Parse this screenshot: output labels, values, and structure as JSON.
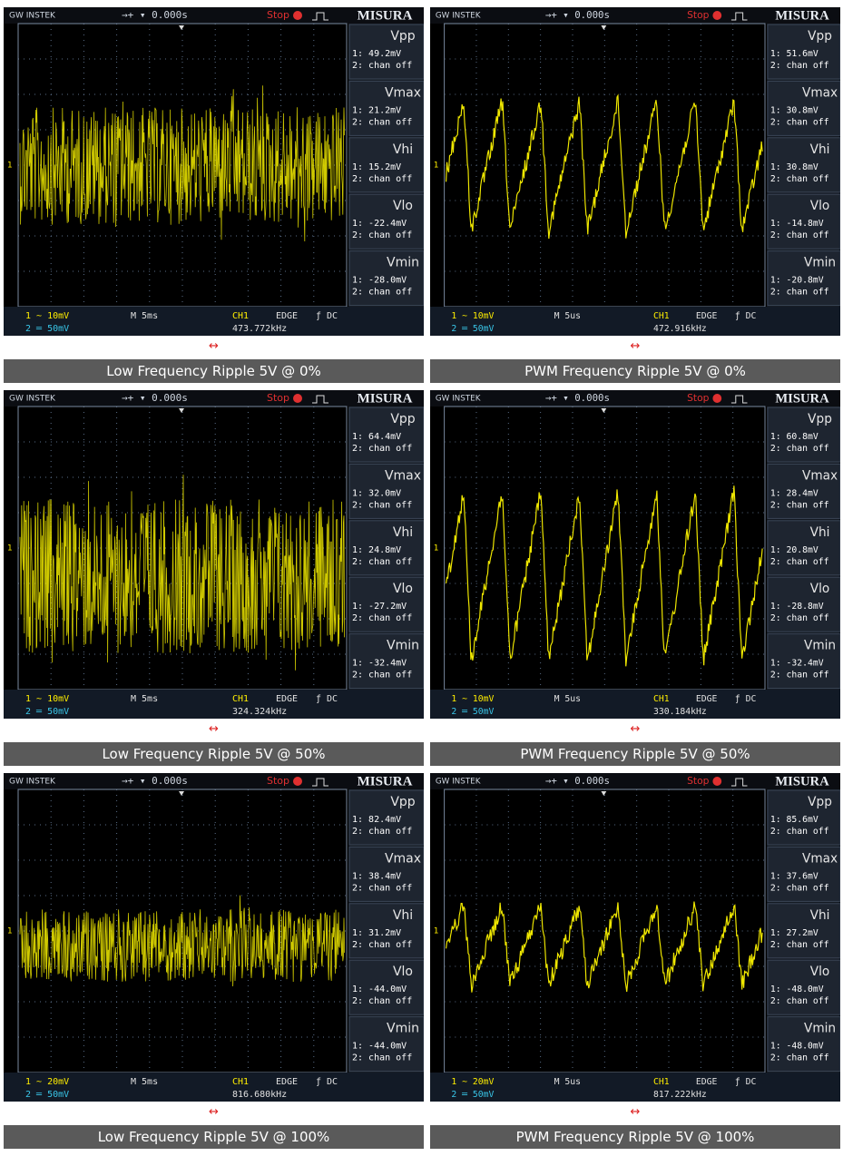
{
  "panels": [
    {
      "brand": "GW INSTEK",
      "trigger": "→+ ▾ 0.000s",
      "status": "Stop",
      "title": "MISURA",
      "channel_marker": "1",
      "measurements": [
        {
          "label": "Vpp",
          "ch1": "1: 49.2mV",
          "ch2": "2: chan off"
        },
        {
          "label": "Vmax",
          "ch1": "1: 21.2mV",
          "ch2": "2: chan off"
        },
        {
          "label": "Vhi",
          "ch1": "1: 15.2mV",
          "ch2": "2: chan off"
        },
        {
          "label": "Vlo",
          "ch1": "1: -22.4mV",
          "ch2": "2: chan off"
        },
        {
          "label": "Vmin",
          "ch1": "1: -28.0mV",
          "ch2": "2: chan off"
        }
      ],
      "ch1_scale": "1 ~ 10mV",
      "ch2_scale": "2 ═ 50mV",
      "timebase": "M 5ms",
      "source": "CH1",
      "trigger_type": "EDGE",
      "coupling": "ƒ DC",
      "frequency": "473.772kHz",
      "link": "↔",
      "caption": "Low Frequency Ripple 5V @ 0%"
    },
    {
      "brand": "GW INSTEK",
      "trigger": "→+ ▾ 0.000s",
      "status": "Stop",
      "title": "MISURA",
      "channel_marker": "1",
      "measurements": [
        {
          "label": "Vpp",
          "ch1": "1: 51.6mV",
          "ch2": "2: chan off"
        },
        {
          "label": "Vmax",
          "ch1": "1: 30.8mV",
          "ch2": "2: chan off"
        },
        {
          "label": "Vhi",
          "ch1": "1: 30.8mV",
          "ch2": "2: chan off"
        },
        {
          "label": "Vlo",
          "ch1": "1: -14.8mV",
          "ch2": "2: chan off"
        },
        {
          "label": "Vmin",
          "ch1": "1: -20.8mV",
          "ch2": "2: chan off"
        }
      ],
      "ch1_scale": "1 ~ 10mV",
      "ch2_scale": "2 ═ 50mV",
      "timebase": "M 5us",
      "source": "CH1",
      "trigger_type": "EDGE",
      "coupling": "ƒ DC",
      "frequency": "472.916kHz",
      "link": "↔",
      "caption": "PWM Frequency Ripple 5V @ 0%"
    },
    {
      "brand": "GW INSTEK",
      "trigger": "→+ ▾ 0.000s",
      "status": "Stop",
      "title": "MISURA",
      "channel_marker": "1",
      "measurements": [
        {
          "label": "Vpp",
          "ch1": "1: 64.4mV",
          "ch2": "2: chan off"
        },
        {
          "label": "Vmax",
          "ch1": "1: 32.0mV",
          "ch2": "2: chan off"
        },
        {
          "label": "Vhi",
          "ch1": "1: 24.8mV",
          "ch2": "2: chan off"
        },
        {
          "label": "Vlo",
          "ch1": "1: -27.2mV",
          "ch2": "2: chan off"
        },
        {
          "label": "Vmin",
          "ch1": "1: -32.4mV",
          "ch2": "2: chan off"
        }
      ],
      "ch1_scale": "1 ~ 10mV",
      "ch2_scale": "2 ═ 50mV",
      "timebase": "M 5ms",
      "source": "CH1",
      "trigger_type": "EDGE",
      "coupling": "ƒ DC",
      "frequency": "324.324kHz",
      "link": "↔",
      "caption": "Low Frequency Ripple 5V @ 50%"
    },
    {
      "brand": "GW INSTEK",
      "trigger": "→+ ▾ 0.000s",
      "status": "Stop",
      "title": "MISURA",
      "channel_marker": "1",
      "measurements": [
        {
          "label": "Vpp",
          "ch1": "1: 60.8mV",
          "ch2": "2: chan off"
        },
        {
          "label": "Vmax",
          "ch1": "1: 28.4mV",
          "ch2": "2: chan off"
        },
        {
          "label": "Vhi",
          "ch1": "1: 20.8mV",
          "ch2": "2: chan off"
        },
        {
          "label": "Vlo",
          "ch1": "1: -28.8mV",
          "ch2": "2: chan off"
        },
        {
          "label": "Vmin",
          "ch1": "1: -32.4mV",
          "ch2": "2: chan off"
        }
      ],
      "ch1_scale": "1 ~ 10mV",
      "ch2_scale": "2 ═ 50mV",
      "timebase": "M 5us",
      "source": "CH1",
      "trigger_type": "EDGE",
      "coupling": "ƒ DC",
      "frequency": "330.184kHz",
      "link": "↔",
      "caption": "PWM Frequency Ripple 5V @ 50%"
    },
    {
      "brand": "GW INSTEK",
      "trigger": "→+ ▾ 0.000s",
      "status": "Stop",
      "title": "MISURA",
      "channel_marker": "1",
      "measurements": [
        {
          "label": "Vpp",
          "ch1": "1: 82.4mV",
          "ch2": "2: chan off"
        },
        {
          "label": "Vmax",
          "ch1": "1: 38.4mV",
          "ch2": "2: chan off"
        },
        {
          "label": "Vhi",
          "ch1": "1: 31.2mV",
          "ch2": "2: chan off"
        },
        {
          "label": "Vlo",
          "ch1": "1: -44.0mV",
          "ch2": "2: chan off"
        },
        {
          "label": "Vmin",
          "ch1": "1: -44.0mV",
          "ch2": "2: chan off"
        }
      ],
      "ch1_scale": "1 ~ 20mV",
      "ch2_scale": "2 ═ 50mV",
      "timebase": "M 5ms",
      "source": "CH1",
      "trigger_type": "EDGE",
      "coupling": "ƒ DC",
      "frequency": "816.680kHz",
      "link": "↔",
      "caption": "Low Frequency Ripple 5V @ 100%"
    },
    {
      "brand": "GW INSTEK",
      "trigger": "→+ ▾ 0.000s",
      "status": "Stop",
      "title": "MISURA",
      "channel_marker": "1",
      "measurements": [
        {
          "label": "Vpp",
          "ch1": "1: 85.6mV",
          "ch2": "2: chan off"
        },
        {
          "label": "Vmax",
          "ch1": "1: 37.6mV",
          "ch2": "2: chan off"
        },
        {
          "label": "Vhi",
          "ch1": "1: 27.2mV",
          "ch2": "2: chan off"
        },
        {
          "label": "Vlo",
          "ch1": "1: -48.0mV",
          "ch2": "2: chan off"
        },
        {
          "label": "Vmin",
          "ch1": "1: -48.0mV",
          "ch2": "2: chan off"
        }
      ],
      "ch1_scale": "1 ~ 20mV",
      "ch2_scale": "2 ═ 50mV",
      "timebase": "M 5us",
      "source": "CH1",
      "trigger_type": "EDGE",
      "coupling": "ƒ DC",
      "frequency": "817.222kHz",
      "link": "↔",
      "caption": "PWM Frequency Ripple 5V @ 100%"
    }
  ]
}
